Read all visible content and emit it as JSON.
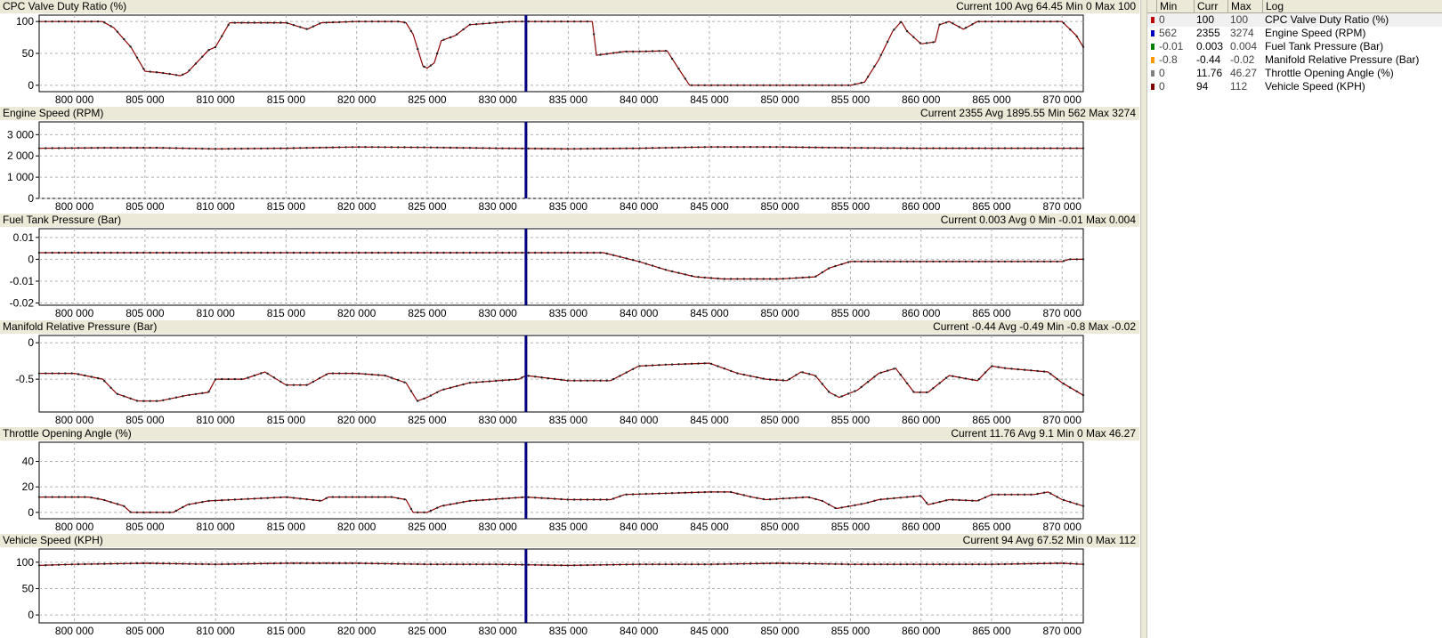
{
  "x_ticks": [
    "800 000",
    "805 000",
    "810 000",
    "815 000",
    "820 000",
    "825 000",
    "830 000",
    "835 000",
    "840 000",
    "845 000",
    "850 000",
    "855 000",
    "860 000",
    "865 000",
    "870 000"
  ],
  "colors": {
    "line": "#8b0000",
    "cursor": "#000080",
    "grid": "#b0b0b0",
    "header_bg": "#ece9d8"
  },
  "panels": [
    {
      "title": "CPC Valve Duty Ratio (%)",
      "stats": "Current 100 Avg 64.45 Min 0 Max 100",
      "y_ticks": [
        "100",
        "50",
        "0"
      ],
      "y_tick_values": [
        100,
        50,
        0
      ],
      "ylim": [
        -10,
        110
      ]
    },
    {
      "title": "Engine Speed (RPM)",
      "stats": "Current 2355 Avg 1895.55 Min 562 Max 3274",
      "y_ticks": [
        "3 000",
        "2 000",
        "1 000",
        "0"
      ],
      "y_tick_values": [
        3000,
        2000,
        1000,
        0
      ],
      "ylim": [
        0,
        3600
      ]
    },
    {
      "title": "Fuel Tank Pressure (Bar)",
      "stats": "Current 0.003 Avg 0 Min -0.01 Max 0.004",
      "y_ticks": [
        "0.01",
        "0",
        "-0.01",
        "-0.02"
      ],
      "y_tick_values": [
        0.01,
        0,
        -0.01,
        -0.02
      ],
      "ylim": [
        -0.021,
        0.014
      ]
    },
    {
      "title": "Manifold Relative Pressure (Bar)",
      "stats": "Current -0.44 Avg -0.49 Min -0.8 Max -0.02",
      "y_ticks": [
        "0",
        "-0.5"
      ],
      "y_tick_values": [
        0,
        -0.5
      ],
      "ylim": [
        -0.95,
        0.1
      ]
    },
    {
      "title": "Throttle Opening Angle (%)",
      "stats": "Current 11.76 Avg 9.1 Min 0 Max 46.27",
      "y_ticks": [
        "40",
        "20",
        "0"
      ],
      "y_tick_values": [
        40,
        20,
        0
      ],
      "ylim": [
        -5,
        55
      ]
    },
    {
      "title": "Vehicle Speed (KPH)",
      "stats": "Current 94 Avg 67.52 Min 0 Max 112",
      "y_ticks": [
        "100",
        "50",
        "0"
      ],
      "y_tick_values": [
        100,
        50,
        0
      ],
      "ylim": [
        -15,
        125
      ]
    }
  ],
  "chart_data": [
    {
      "type": "line",
      "title": "CPC Valve Duty Ratio (%)",
      "xlim": [
        797500,
        871500
      ],
      "ylim": [
        -10,
        110
      ],
      "cursor_x": 832000,
      "series": [
        {
          "name": "CPC Valve Duty Ratio (%)",
          "x": [
            797500,
            802000,
            802800,
            804000,
            805000,
            806000,
            807000,
            807500,
            808000,
            809500,
            810000,
            811000,
            815000,
            816500,
            817500,
            820000,
            823000,
            823500,
            824000,
            824700,
            825000,
            825500,
            826000,
            827000,
            828000,
            831000,
            832000,
            834000,
            836700,
            837000,
            838000,
            839000,
            840000,
            842000,
            843000,
            843600,
            850000,
            855000,
            856000,
            857000,
            858000,
            858600,
            859000,
            860000,
            861000,
            861300,
            862000,
            863000,
            864000,
            866000,
            870000,
            871000,
            871500
          ],
          "y": [
            100,
            100,
            90,
            60,
            22,
            20,
            17,
            15,
            20,
            55,
            60,
            98,
            98,
            88,
            98,
            100,
            100,
            98,
            80,
            30,
            27,
            35,
            70,
            78,
            95,
            100,
            100,
            100,
            100,
            47,
            50,
            53,
            53,
            54,
            20,
            0,
            0,
            0,
            5,
            40,
            85,
            100,
            85,
            65,
            68,
            95,
            100,
            88,
            100,
            100,
            100,
            78,
            60
          ]
        }
      ]
    },
    {
      "type": "line",
      "title": "Engine Speed (RPM)",
      "xlim": [
        797500,
        871500
      ],
      "ylim": [
        0,
        3600
      ],
      "cursor_x": 832000,
      "series": [
        {
          "name": "Engine Speed (RPM)",
          "x": [
            797500,
            802000,
            806000,
            810000,
            815000,
            820000,
            825000,
            830000,
            835000,
            840000,
            845000,
            850000,
            855000,
            860000,
            865000,
            870000,
            871500
          ],
          "y": [
            2360,
            2380,
            2380,
            2330,
            2360,
            2420,
            2400,
            2360,
            2330,
            2360,
            2420,
            2420,
            2380,
            2360,
            2360,
            2360,
            2360
          ]
        }
      ]
    },
    {
      "type": "line",
      "title": "Fuel Tank Pressure (Bar)",
      "xlim": [
        797500,
        871500
      ],
      "ylim": [
        -0.021,
        0.014
      ],
      "cursor_x": 832000,
      "series": [
        {
          "name": "Fuel Tank Pressure (Bar)",
          "x": [
            797500,
            830000,
            835000,
            837500,
            840000,
            842000,
            844000,
            846000,
            850000,
            852500,
            853500,
            855000,
            860000,
            870000,
            870500,
            871500
          ],
          "y": [
            0.003,
            0.003,
            0.003,
            0.003,
            -0.001,
            -0.005,
            -0.008,
            -0.009,
            -0.009,
            -0.008,
            -0.004,
            -0.001,
            -0.001,
            -0.001,
            0.0,
            0.0
          ]
        }
      ]
    },
    {
      "type": "line",
      "title": "Manifold Relative Pressure (Bar)",
      "xlim": [
        797500,
        871500
      ],
      "ylim": [
        -0.95,
        0.1
      ],
      "cursor_x": 832000,
      "series": [
        {
          "name": "Manifold Relative Pressure (Bar)",
          "x": [
            797500,
            800000,
            802000,
            803000,
            804500,
            806000,
            808000,
            809500,
            810000,
            812000,
            813500,
            815000,
            816500,
            818000,
            820000,
            822000,
            823500,
            824300,
            825000,
            826000,
            828000,
            831500,
            832000,
            835000,
            838000,
            840000,
            842000,
            845000,
            847000,
            849000,
            850500,
            851500,
            852500,
            853500,
            854200,
            855500,
            857000,
            858200,
            859500,
            860500,
            862000,
            864000,
            865000,
            866000,
            869000,
            870000,
            871500
          ],
          "y": [
            -0.42,
            -0.42,
            -0.5,
            -0.7,
            -0.8,
            -0.8,
            -0.72,
            -0.68,
            -0.5,
            -0.5,
            -0.4,
            -0.58,
            -0.58,
            -0.42,
            -0.42,
            -0.45,
            -0.55,
            -0.8,
            -0.75,
            -0.65,
            -0.55,
            -0.5,
            -0.45,
            -0.52,
            -0.52,
            -0.32,
            -0.3,
            -0.28,
            -0.42,
            -0.5,
            -0.52,
            -0.4,
            -0.45,
            -0.68,
            -0.75,
            -0.65,
            -0.42,
            -0.35,
            -0.68,
            -0.68,
            -0.45,
            -0.52,
            -0.32,
            -0.35,
            -0.4,
            -0.55,
            -0.72
          ]
        }
      ]
    },
    {
      "type": "line",
      "title": "Throttle Opening Angle (%)",
      "xlim": [
        797500,
        871500
      ],
      "ylim": [
        -5,
        55
      ],
      "cursor_x": 832000,
      "series": [
        {
          "name": "Throttle Opening Angle (%)",
          "x": [
            797500,
            801000,
            802000,
            803500,
            804000,
            807000,
            808000,
            809500,
            815000,
            817500,
            818000,
            822500,
            823500,
            824000,
            825000,
            826000,
            828000,
            832000,
            835000,
            838000,
            839000,
            845000,
            846500,
            848000,
            849000,
            852000,
            853000,
            854000,
            855000,
            856000,
            857000,
            860000,
            860500,
            862000,
            864000,
            865000,
            868000,
            869000,
            870000,
            871500
          ],
          "y": [
            12,
            12,
            10,
            5,
            0,
            0,
            6,
            9,
            12,
            9,
            12,
            12,
            10,
            0,
            0,
            5,
            9,
            12,
            10,
            10,
            14,
            16,
            16,
            12,
            10,
            12,
            9,
            3,
            5,
            7,
            10,
            13,
            6,
            10,
            9,
            14,
            14,
            16,
            10,
            5
          ]
        }
      ]
    },
    {
      "type": "line",
      "title": "Vehicle Speed (KPH)",
      "xlim": [
        797500,
        871500
      ],
      "ylim": [
        -15,
        125
      ],
      "cursor_x": 832000,
      "series": [
        {
          "name": "Vehicle Speed (KPH)",
          "x": [
            797500,
            800000,
            805000,
            810000,
            815000,
            820000,
            825000,
            830000,
            835000,
            840000,
            845000,
            850000,
            855000,
            860000,
            865000,
            870000,
            871500
          ],
          "y": [
            94,
            96,
            98,
            96,
            98,
            98,
            96,
            96,
            94,
            96,
            96,
            98,
            96,
            96,
            96,
            98,
            96
          ]
        }
      ]
    }
  ],
  "legend": {
    "headers": {
      "min": "Min",
      "curr": "Curr",
      "max": "Max",
      "log": "Log"
    },
    "rows": [
      {
        "color": "#c00000",
        "min": "0",
        "curr": "100",
        "max": "100",
        "name": "CPC Valve Duty Ratio (%)"
      },
      {
        "color": "#0000c0",
        "min": "562",
        "curr": "2355",
        "max": "3274",
        "name": "Engine Speed (RPM)"
      },
      {
        "color": "#008000",
        "min": "-0.01",
        "curr": "0.003",
        "max": "0.004",
        "name": "Fuel Tank Pressure (Bar)"
      },
      {
        "color": "#ff9900",
        "min": "-0.8",
        "curr": "-0.44",
        "max": "-0.02",
        "name": "Manifold Relative Pressure (Bar)"
      },
      {
        "color": "#808080",
        "min": "0",
        "curr": "11.76",
        "max": "46.27",
        "name": "Throttle Opening Angle (%)"
      },
      {
        "color": "#800000",
        "min": "0",
        "curr": "94",
        "max": "112",
        "name": "Vehicle Speed (KPH)"
      }
    ]
  }
}
